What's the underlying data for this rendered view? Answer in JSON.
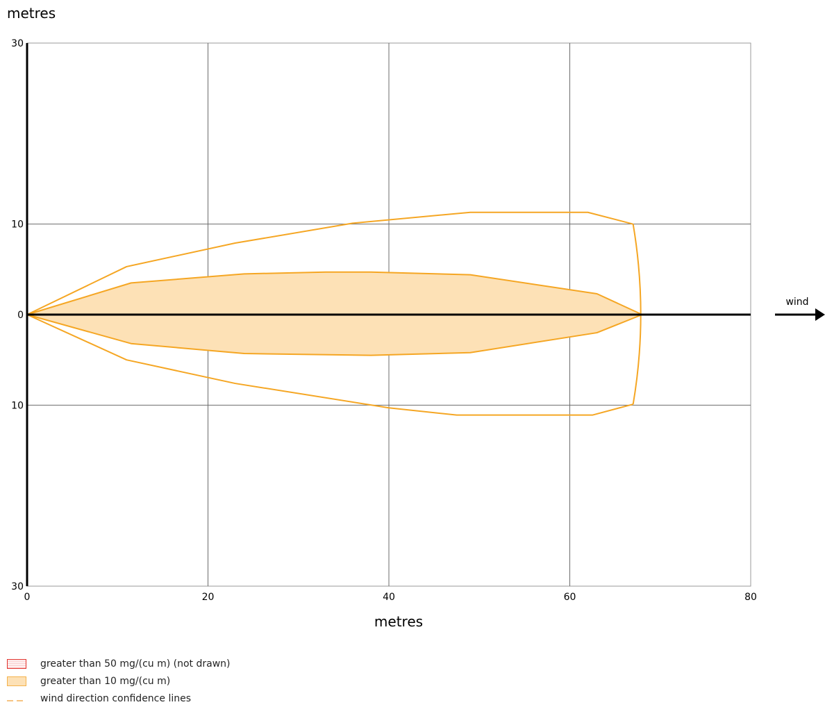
{
  "chart_data": {
    "type": "area",
    "ylabel": "metres",
    "xlabel": "metres",
    "xlim": [
      0,
      80
    ],
    "ylim_top": 30,
    "ylim_bottom": 30,
    "x_ticks": [
      0,
      20,
      40,
      60,
      80
    ],
    "y_ticks_top": [
      30,
      10,
      0
    ],
    "y_ticks_bottom": [
      10,
      30
    ],
    "grid": true,
    "wind_label": "wind",
    "series": [
      {
        "name": "greater than 10 mg/(cu m)",
        "color": "#f5a623",
        "fill": "#fde1b6",
        "upper": [
          [
            0,
            0
          ],
          [
            11.5,
            3.5
          ],
          [
            24,
            4.5
          ],
          [
            33,
            4.7
          ],
          [
            38,
            4.7
          ],
          [
            49,
            4.4
          ],
          [
            63,
            2.3
          ],
          [
            68,
            0
          ]
        ],
        "lower": [
          [
            0,
            0
          ],
          [
            11.5,
            -3.2
          ],
          [
            24,
            -4.3
          ],
          [
            38,
            -4.5
          ],
          [
            49,
            -4.2
          ],
          [
            63,
            -2.0
          ],
          [
            68,
            0
          ]
        ]
      },
      {
        "name": "wind direction confidence lines",
        "color": "#f5a623",
        "upper": [
          [
            0,
            0
          ],
          [
            11,
            5.3
          ],
          [
            23,
            7.9
          ],
          [
            36,
            10.1
          ],
          [
            49,
            11.3
          ],
          [
            62,
            11.3
          ],
          [
            67,
            10.0
          ]
        ],
        "lower": [
          [
            0,
            0
          ],
          [
            11,
            -5.0
          ],
          [
            23,
            -7.6
          ],
          [
            40,
            -10.3
          ],
          [
            47.5,
            -11.1
          ],
          [
            62.5,
            -11.1
          ],
          [
            67,
            -9.9
          ]
        ]
      }
    ]
  },
  "legend": [
    {
      "label": "greater than 50 mg/(cu m) (not drawn)",
      "color": "#e2302b"
    },
    {
      "label": "greater than 10 mg/(cu m)",
      "color": "#f5a623"
    },
    {
      "label": "wind direction confidence lines",
      "color": "#f6c382"
    }
  ]
}
